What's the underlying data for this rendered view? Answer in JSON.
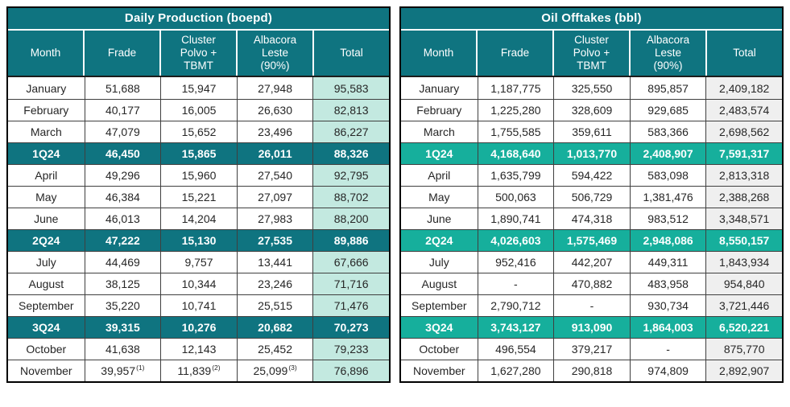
{
  "colors": {
    "header-bg": "#0F7480",
    "outer-border": "#000000",
    "inner-border": "#3F3F3F",
    "text-dark": "#262626",
    "text-light": "#FFFFFF"
  },
  "chart_data": [
    {
      "type": "table",
      "title": "Daily Production (boepd)",
      "theme": {
        "header-bg": "#0F7480",
        "quarter-bg": "#0F7480",
        "total-bg": "#C3E9E0"
      },
      "columns": [
        "Month",
        "Frade",
        "Cluster\nPolvo +\nTBMT",
        "Albacora\nLeste\n(90%)",
        "Total"
      ],
      "rows": [
        {
          "type": "month",
          "cells": [
            "January",
            "51,688",
            "15,947",
            "27,948",
            "95,583"
          ]
        },
        {
          "type": "month",
          "cells": [
            "February",
            "40,177",
            "16,005",
            "26,630",
            "82,813"
          ]
        },
        {
          "type": "month",
          "cells": [
            "March",
            "47,079",
            "15,652",
            "23,496",
            "86,227"
          ]
        },
        {
          "type": "quarter",
          "cells": [
            "1Q24",
            "46,450",
            "15,865",
            "26,011",
            "88,326"
          ]
        },
        {
          "type": "month",
          "cells": [
            "April",
            "49,296",
            "15,960",
            "27,540",
            "92,795"
          ]
        },
        {
          "type": "month",
          "cells": [
            "May",
            "46,384",
            "15,221",
            "27,097",
            "88,702"
          ]
        },
        {
          "type": "month",
          "cells": [
            "June",
            "46,013",
            "14,204",
            "27,983",
            "88,200"
          ]
        },
        {
          "type": "quarter",
          "cells": [
            "2Q24",
            "47,222",
            "15,130",
            "27,535",
            "89,886"
          ]
        },
        {
          "type": "month",
          "cells": [
            "July",
            "44,469",
            "9,757",
            "13,441",
            "67,666"
          ]
        },
        {
          "type": "month",
          "cells": [
            "August",
            "38,125",
            "10,344",
            "23,246",
            "71,716"
          ]
        },
        {
          "type": "month",
          "cells": [
            "September",
            "35,220",
            "10,741",
            "25,515",
            "71,476"
          ]
        },
        {
          "type": "quarter",
          "cells": [
            "3Q24",
            "39,315",
            "10,276",
            "20,682",
            "70,273"
          ]
        },
        {
          "type": "month",
          "cells": [
            "October",
            "41,638",
            "12,143",
            "25,452",
            "79,233"
          ]
        },
        {
          "type": "month",
          "cells": [
            "November",
            "39,957",
            "11,839",
            "25,099",
            "76,896"
          ],
          "sup": [
            "",
            "(1)",
            "(2)",
            "(3)",
            ""
          ]
        }
      ]
    },
    {
      "type": "table",
      "title": "Oil Offtakes (bbl)",
      "theme": {
        "header-bg": "#0F7480",
        "quarter-bg": "#16AF9C",
        "total-bg": "#EFEFEF"
      },
      "columns": [
        "Month",
        "Frade",
        "Cluster\nPolvo +\nTBMT",
        "Albacora\nLeste\n(90%)",
        "Total"
      ],
      "rows": [
        {
          "type": "month",
          "cells": [
            "January",
            "1,187,775",
            "325,550",
            "895,857",
            "2,409,182"
          ]
        },
        {
          "type": "month",
          "cells": [
            "February",
            "1,225,280",
            "328,609",
            "929,685",
            "2,483,574"
          ]
        },
        {
          "type": "month",
          "cells": [
            "March",
            "1,755,585",
            "359,611",
            "583,366",
            "2,698,562"
          ]
        },
        {
          "type": "quarter",
          "cells": [
            "1Q24",
            "4,168,640",
            "1,013,770",
            "2,408,907",
            "7,591,317"
          ]
        },
        {
          "type": "month",
          "cells": [
            "April",
            "1,635,799",
            "594,422",
            "583,098",
            "2,813,318"
          ]
        },
        {
          "type": "month",
          "cells": [
            "May",
            "500,063",
            "506,729",
            "1,381,476",
            "2,388,268"
          ]
        },
        {
          "type": "month",
          "cells": [
            "June",
            "1,890,741",
            "474,318",
            "983,512",
            "3,348,571"
          ]
        },
        {
          "type": "quarter",
          "cells": [
            "2Q24",
            "4,026,603",
            "1,575,469",
            "2,948,086",
            "8,550,157"
          ]
        },
        {
          "type": "month",
          "cells": [
            "July",
            "952,416",
            "442,207",
            "449,311",
            "1,843,934"
          ]
        },
        {
          "type": "month",
          "cells": [
            "August",
            "-",
            "470,882",
            "483,958",
            "954,840"
          ]
        },
        {
          "type": "month",
          "cells": [
            "September",
            "2,790,712",
            "-",
            "930,734",
            "3,721,446"
          ]
        },
        {
          "type": "quarter",
          "cells": [
            "3Q24",
            "3,743,127",
            "913,090",
            "1,864,003",
            "6,520,221"
          ]
        },
        {
          "type": "month",
          "cells": [
            "October",
            "496,554",
            "379,217",
            "-",
            "875,770"
          ]
        },
        {
          "type": "month",
          "cells": [
            "November",
            "1,627,280",
            "290,818",
            "974,809",
            "2,892,907"
          ]
        }
      ]
    }
  ]
}
